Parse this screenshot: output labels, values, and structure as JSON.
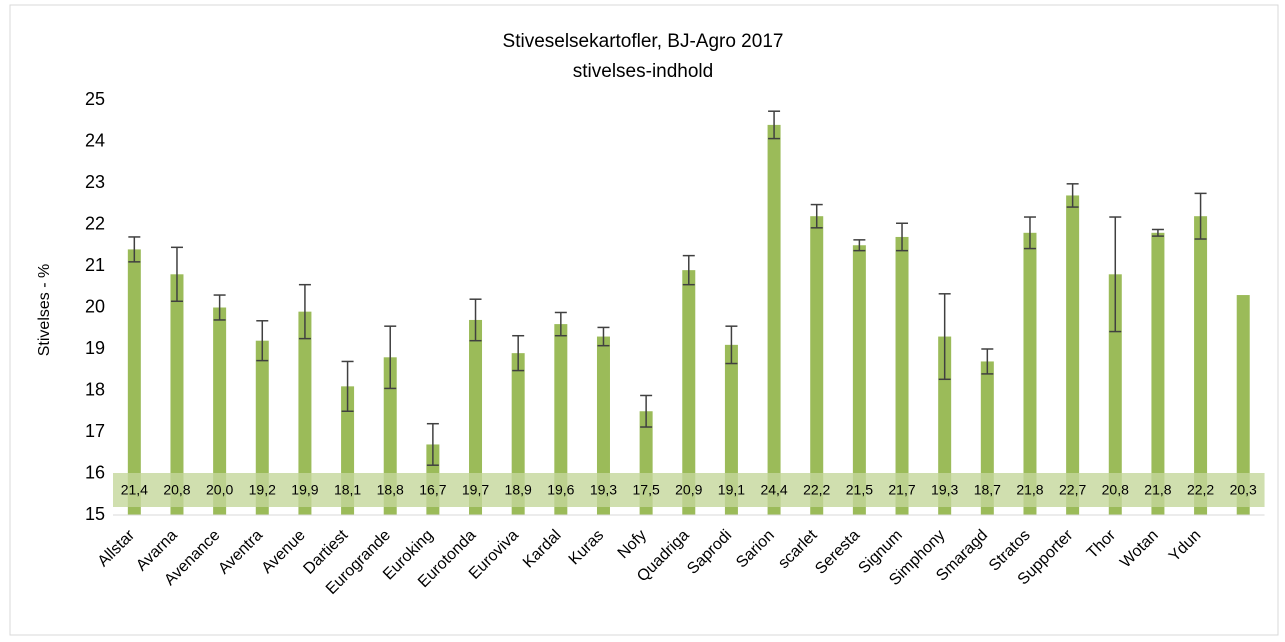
{
  "chart_data": {
    "type": "bar",
    "title": "Stiveselsekartofler, BJ-Agro 2017",
    "subtitle": "stivelses-indhold",
    "ylabel": "Stivelses - %",
    "categories": [
      "Allstar",
      "Avarna",
      "Avenance",
      "Aventra",
      "Avenue",
      "Dartiest",
      "Eurogrande",
      "Euroking",
      "Eurotonda",
      "Euroviva",
      "Kardal",
      "Kuras",
      "Nofy",
      "Quadriga",
      "Saprodi",
      "Sarion",
      "scarlet",
      "Seresta",
      "Signum",
      "Simphony",
      "Smaragd",
      "Stratos",
      "Supporter",
      "Thor",
      "Wotan",
      "Ydun",
      null
    ],
    "values": [
      21.4,
      20.8,
      20.0,
      19.2,
      19.9,
      18.1,
      18.8,
      16.7,
      19.7,
      18.9,
      19.6,
      19.3,
      17.5,
      20.9,
      19.1,
      24.4,
      22.2,
      21.5,
      21.7,
      19.3,
      18.7,
      21.8,
      22.7,
      20.8,
      21.8,
      22.2,
      20.3
    ],
    "value_labels": [
      "21,4",
      "20,8",
      "20,0",
      "19,2",
      "19,9",
      "18,1",
      "18,8",
      "16,7",
      "19,7",
      "18,9",
      "19,6",
      "19,3",
      "17,5",
      "20,9",
      "19,1",
      "24,4",
      "22,2",
      "21,5",
      "21,7",
      "19,3",
      "18,7",
      "21,8",
      "22,7",
      "20,8",
      "21,8",
      "22,2",
      "20,3"
    ],
    "errors": [
      0.3,
      0.65,
      0.3,
      0.48,
      0.65,
      0.6,
      0.75,
      0.5,
      0.5,
      0.42,
      0.28,
      0.22,
      0.38,
      0.35,
      0.45,
      0.33,
      0.28,
      0.13,
      0.33,
      1.03,
      0.3,
      0.38,
      0.28,
      1.38,
      0.08,
      0.55,
      null
    ],
    "color": "#9bbb59",
    "ylim": [
      15,
      25
    ],
    "yticks": [
      15,
      16,
      17,
      18,
      19,
      20,
      21,
      22,
      23,
      24,
      25
    ]
  }
}
